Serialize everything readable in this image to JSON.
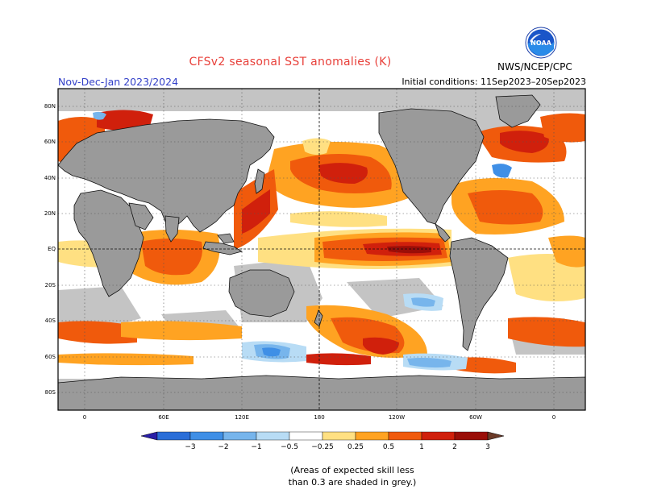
{
  "header": {
    "title": "CFSv2 seasonal SST anomalies (K)",
    "period": "Nov-Dec-Jan 2023/2024",
    "initial_conditions": "Initial conditions: 11Sep2023–20Sep2023",
    "agency": "NWS/NCEP/CPC",
    "logo_text": "NOAA",
    "logo_icon": "noaa-logo-icon"
  },
  "map": {
    "projection": "equirectangular",
    "lat_range": [
      -90,
      90
    ],
    "lat_labels": [
      "80N",
      "60N",
      "40N",
      "20N",
      "EQ",
      "20S",
      "40S",
      "60S",
      "80S"
    ],
    "lon_labels": [
      "0",
      "60E",
      "120E",
      "180",
      "120W",
      "60W",
      "0"
    ],
    "land_color": "#9a9a9a",
    "ocean_skill_shade": "#c8c8c8",
    "grid": "dotted"
  },
  "colorbar": {
    "labels": [
      "−3",
      "−2",
      "−1",
      "−0.5",
      "−0.25",
      "0.25",
      "0.5",
      "1",
      "2",
      "3"
    ],
    "colors": [
      "#2a1fa8",
      "#2a6ed8",
      "#3f8fe6",
      "#77b5ec",
      "#b8dcf5",
      "#ffffff",
      "#ffe082",
      "#ffa322",
      "#f05a0c",
      "#d0200c",
      "#9a0e08",
      "#6b3a28"
    ]
  },
  "footnote": {
    "line1": "(Areas of expected skill less",
    "line2": "than 0.3 are shaded in grey.)"
  }
}
